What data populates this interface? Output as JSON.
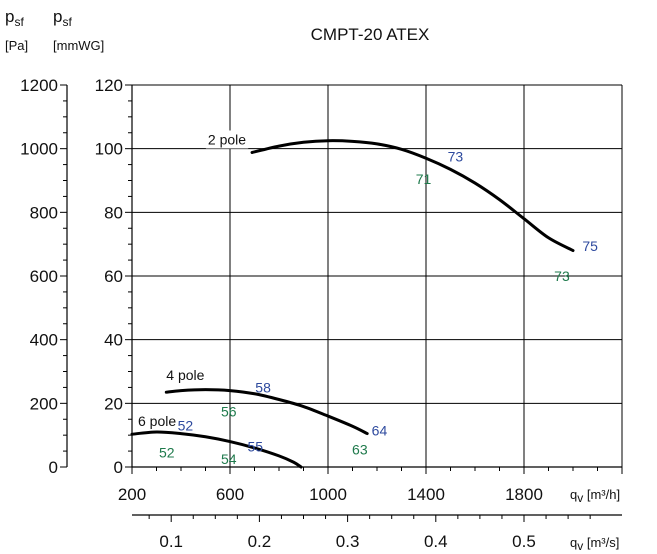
{
  "chart_data": {
    "type": "line",
    "title": "CMPT-20 ATEX",
    "left_axis_1": {
      "symbol": "p",
      "subscript": "sf",
      "unit": "[Pa]",
      "range": [
        0,
        1200
      ],
      "ticks": [
        "0",
        "200",
        "400",
        "600",
        "800",
        "1000",
        "1200"
      ]
    },
    "left_axis_2": {
      "symbol": "p",
      "subscript": "sf",
      "unit": "[mmWG]",
      "range": [
        0,
        120
      ],
      "ticks": [
        "0",
        "20",
        "40",
        "60",
        "80",
        "100",
        "120"
      ]
    },
    "x_axis_1": {
      "symbol": "q",
      "subscript": "v",
      "unit": "[m³/h]",
      "range": [
        200,
        2200
      ],
      "ticks": [
        "200",
        "600",
        "1000",
        "1400",
        "1800"
      ]
    },
    "x_axis_2": {
      "symbol": "q",
      "subscript": "v",
      "unit": "[m³/s]",
      "range": [
        0.0556,
        0.6111
      ],
      "ticks": [
        "0.1",
        "0.2",
        "0.3",
        "0.4",
        "0.5"
      ]
    },
    "grid": true,
    "series": [
      {
        "name": "2 pole",
        "x": [
          690,
          800,
          900,
          1000,
          1100,
          1200,
          1300,
          1400,
          1500,
          1600,
          1700,
          1800,
          1900,
          2000
        ],
        "y": [
          988,
          1008,
          1020,
          1025,
          1023,
          1015,
          998,
          970,
          935,
          892,
          840,
          780,
          720,
          680
        ]
      },
      {
        "name": "4 pole",
        "x": [
          340,
          400,
          500,
          600,
          700,
          800,
          900,
          1000,
          1100,
          1160
        ],
        "y": [
          235,
          240,
          243,
          240,
          230,
          212,
          190,
          160,
          128,
          105
        ]
      },
      {
        "name": "6 pole",
        "x": [
          200,
          300,
          400,
          500,
          600,
          700,
          800,
          860,
          890
        ],
        "y": [
          103,
          110,
          105,
          95,
          80,
          60,
          35,
          15,
          0
        ]
      }
    ],
    "annotations": [
      {
        "text": "73",
        "x": 1520,
        "y": 975,
        "color": "blue"
      },
      {
        "text": "71",
        "x": 1390,
        "y": 905,
        "color": "green"
      },
      {
        "text": "75",
        "x": 2070,
        "y": 695,
        "color": "blue"
      },
      {
        "text": "73",
        "x": 1955,
        "y": 600,
        "color": "green"
      },
      {
        "text": "58",
        "x": 735,
        "y": 250,
        "color": "blue"
      },
      {
        "text": "56",
        "x": 595,
        "y": 175,
        "color": "green"
      },
      {
        "text": "64",
        "x": 1210,
        "y": 115,
        "color": "blue"
      },
      {
        "text": "63",
        "x": 1130,
        "y": 55,
        "color": "green"
      },
      {
        "text": "52",
        "x": 418,
        "y": 130,
        "color": "blue"
      },
      {
        "text": "52",
        "x": 342,
        "y": 45,
        "color": "green"
      },
      {
        "text": "55",
        "x": 703,
        "y": 65,
        "color": "blue"
      },
      {
        "text": "54",
        "x": 595,
        "y": 25,
        "color": "green"
      }
    ],
    "colors": {
      "blue": "#2e4a9e",
      "green": "#1f7a4c",
      "curve": "#000000",
      "grid": "#000000"
    }
  }
}
